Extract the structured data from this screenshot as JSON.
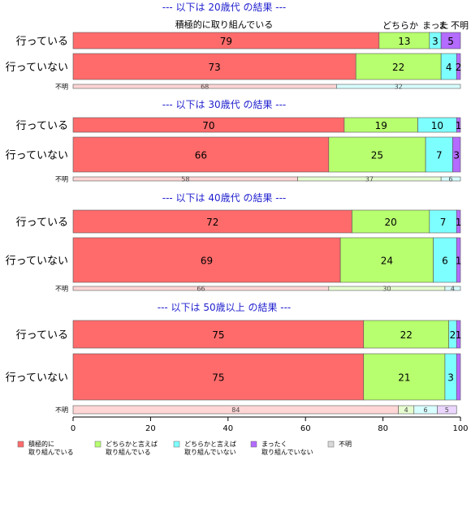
{
  "chart_data": {
    "type": "bar",
    "orientation": "horizontal",
    "stacked": true,
    "xlim": [
      0,
      100
    ],
    "x_ticks": [
      "0",
      "20",
      "40",
      "60",
      "80",
      "100"
    ],
    "categories_all": [
      "積極的に\n取り組んでいる",
      "どちらかと言えば\n取り組んでいる",
      "どちらかと言えば\n取り組んでいない",
      "まったく\n取り組んでいない",
      "不明"
    ],
    "colors": [
      "#ff6b6b",
      "#b7ff6e",
      "#7effff",
      "#b46bff",
      "#ffd6d6"
    ],
    "top_labels": {
      "left": "積極的に取り組んでいる",
      "right_1": "どちらか",
      "right_2": "まった",
      "right_3": "ま",
      "right_4": "不明"
    },
    "panels": [
      {
        "title": "--- 以下は 20歳代 の結果 ---",
        "rows": [
          {
            "label": "行っている",
            "values": [
              79,
              13,
              3,
              5
            ],
            "labels": [
              "79",
              "13",
              "3",
              "5"
            ]
          },
          {
            "label": "行っていない",
            "values": [
              73,
              22,
              4,
              2
            ],
            "labels": [
              "73",
              "22",
              "4",
              "2"
            ]
          },
          {
            "label": "不明",
            "values": [
              68,
              32
            ],
            "labels": [
              "68",
              "32"
            ],
            "segment_colors": [
              0,
              2
            ]
          }
        ]
      },
      {
        "title": "--- 以下は 30歳代 の結果 ---",
        "rows": [
          {
            "label": "行っている",
            "values": [
              70,
              19,
              10,
              1
            ],
            "labels": [
              "70",
              "19",
              "10",
              "1"
            ]
          },
          {
            "label": "行っていない",
            "values": [
              66,
              25,
              7,
              3
            ],
            "labels": [
              "66",
              "25",
              "7",
              "3"
            ]
          },
          {
            "label": "不明",
            "values": [
              58,
              37,
              6
            ],
            "labels": [
              "58",
              "37",
              "6"
            ],
            "segment_colors": [
              0,
              1,
              2
            ]
          }
        ]
      },
      {
        "title": "--- 以下は 40歳代 の結果 ---",
        "rows": [
          {
            "label": "行っている",
            "values": [
              72,
              20,
              7,
              1
            ],
            "labels": [
              "72",
              "20",
              "7",
              "1"
            ]
          },
          {
            "label": "行っていない",
            "values": [
              69,
              24,
              6,
              1
            ],
            "labels": [
              "69",
              "24",
              "6",
              "1"
            ]
          },
          {
            "label": "不明",
            "values": [
              66,
              30,
              4
            ],
            "labels": [
              "66",
              "30",
              "4"
            ],
            "segment_colors": [
              0,
              1,
              2
            ]
          }
        ]
      },
      {
        "title": "--- 以下は 50歳以上 の結果 ---",
        "rows": [
          {
            "label": "行っている",
            "values": [
              75,
              22,
              2,
              1
            ],
            "labels": [
              "75",
              "22",
              "2",
              "1"
            ]
          },
          {
            "label": "行っていない",
            "values": [
              75,
              21,
              3,
              1
            ],
            "labels": [
              "75",
              "21",
              "3",
              ""
            ]
          },
          {
            "label": "不明",
            "values": [
              84,
              4,
              6,
              5
            ],
            "labels": [
              "84",
              "4",
              "6",
              "5"
            ],
            "segment_colors": [
              4,
              1,
              2,
              3
            ]
          }
        ]
      }
    ],
    "legend": [
      {
        "label": "積極的に\n取り組んでいる",
        "color": "#ff6b6b"
      },
      {
        "label": "どちらかと言えば\n取り組んでいる",
        "color": "#b7ff6e"
      },
      {
        "label": "どちらかと言えば\n取り組んでいない",
        "color": "#7effff"
      },
      {
        "label": "まったく\n取り組んでいない",
        "color": "#b46bff"
      },
      {
        "label": "不明",
        "color": "#d9d9d9"
      }
    ]
  }
}
